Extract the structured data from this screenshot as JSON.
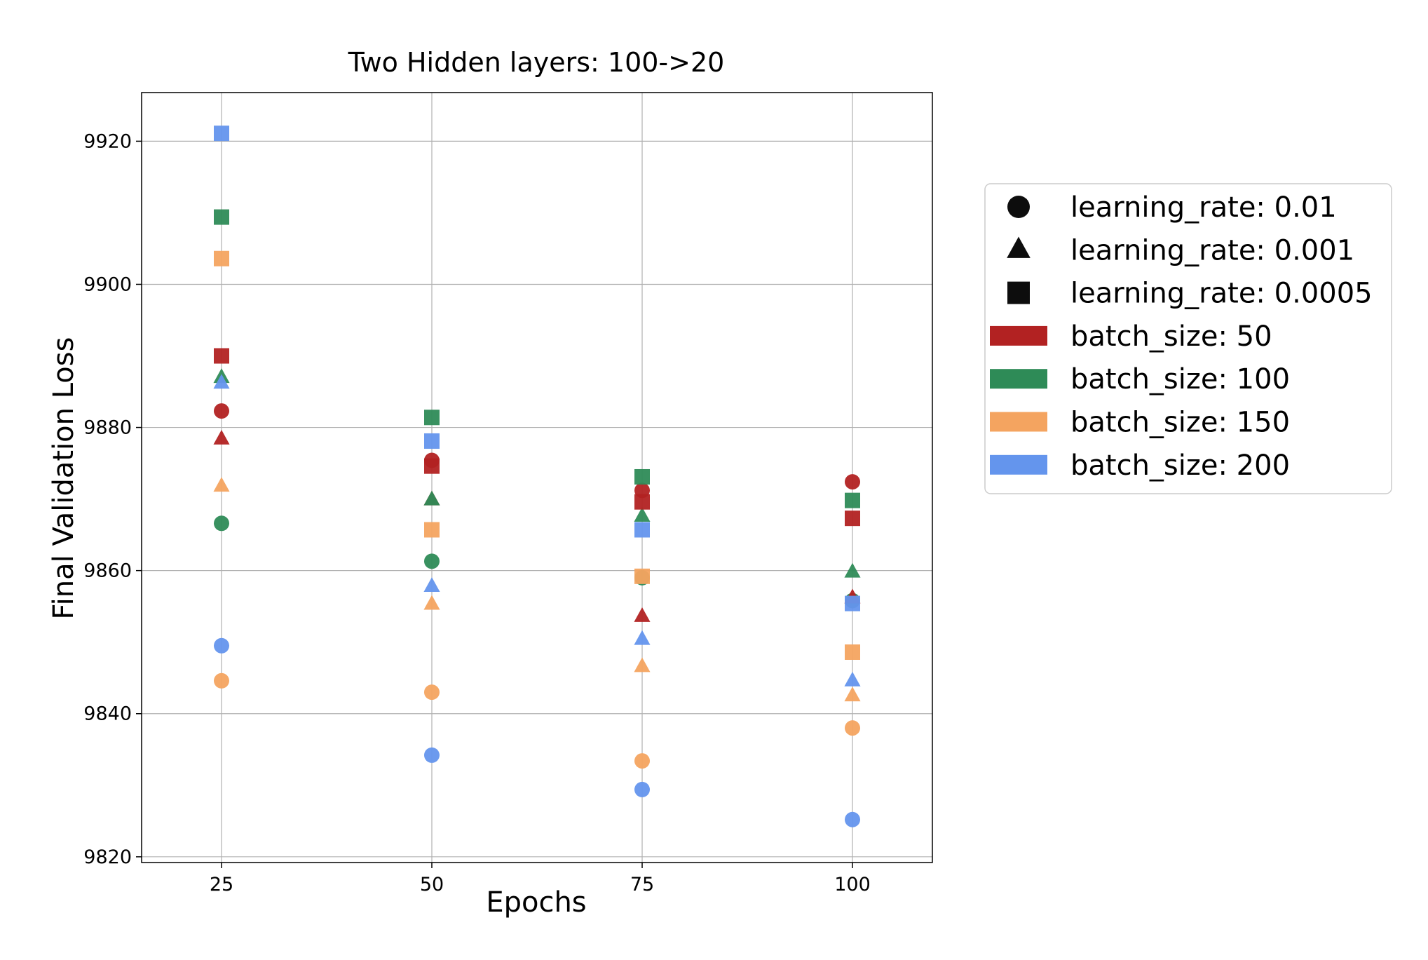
{
  "chart_data": {
    "type": "scatter",
    "title": "Two Hidden layers: 100->20",
    "xlabel": "Epochs",
    "ylabel": "Final Validation Loss",
    "xlim": [
      15.5,
      109.5
    ],
    "ylim": [
      9819.2,
      9926.8
    ],
    "xticks": [
      25,
      50,
      75,
      100
    ],
    "yticks": [
      9820,
      9840,
      9860,
      9880,
      9900,
      9920
    ],
    "grid": true,
    "legend_position": "outside-right",
    "colors": {
      "batch_size_50": "#b22222",
      "batch_size_100": "#2e8b57",
      "batch_size_150": "#f4a460",
      "batch_size_200": "#6495ed",
      "marker_legend": "#000000"
    },
    "legend": [
      {
        "label": "learning_rate: 0.01",
        "kind": "marker",
        "marker": "circle"
      },
      {
        "label": "learning_rate: 0.001",
        "kind": "marker",
        "marker": "triangle"
      },
      {
        "label": "learning_rate: 0.0005",
        "kind": "marker",
        "marker": "square"
      },
      {
        "label": "batch_size: 50",
        "kind": "patch",
        "color_key": "batch_size_50"
      },
      {
        "label": "batch_size: 100",
        "kind": "patch",
        "color_key": "batch_size_100"
      },
      {
        "label": "batch_size: 150",
        "kind": "patch",
        "color_key": "batch_size_150"
      },
      {
        "label": "batch_size: 200",
        "kind": "patch",
        "color_key": "batch_size_200"
      }
    ],
    "series": [
      {
        "batch_size": 50,
        "learning_rate": 0.01,
        "marker": "circle",
        "color_key": "batch_size_50",
        "x": [
          25,
          50,
          75,
          100
        ],
        "y": [
          9882.3,
          9875.4,
          9871.2,
          9872.4
        ]
      },
      {
        "batch_size": 100,
        "learning_rate": 0.01,
        "marker": "circle",
        "color_key": "batch_size_100",
        "x": [
          25,
          50,
          75,
          100
        ],
        "y": [
          9866.6,
          9861.3,
          9859.0,
          9855.8
        ]
      },
      {
        "batch_size": 150,
        "learning_rate": 0.01,
        "marker": "circle",
        "color_key": "batch_size_150",
        "x": [
          25,
          50,
          75,
          100
        ],
        "y": [
          9844.6,
          9843.0,
          9833.4,
          9838.0
        ]
      },
      {
        "batch_size": 200,
        "learning_rate": 0.01,
        "marker": "circle",
        "color_key": "batch_size_200",
        "x": [
          25,
          50,
          75,
          100
        ],
        "y": [
          9849.5,
          9834.2,
          9829.4,
          9825.2
        ]
      },
      {
        "batch_size": 50,
        "learning_rate": 0.001,
        "marker": "triangle",
        "color_key": "batch_size_50",
        "x": [
          25,
          50,
          75,
          100
        ],
        "y": [
          9878.4,
          9869.9,
          9853.6,
          9856.2
        ]
      },
      {
        "batch_size": 100,
        "learning_rate": 0.001,
        "marker": "triangle",
        "color_key": "batch_size_100",
        "x": [
          25,
          50,
          75,
          100
        ],
        "y": [
          9887.0,
          9869.9,
          9867.6,
          9859.8
        ]
      },
      {
        "batch_size": 150,
        "learning_rate": 0.001,
        "marker": "triangle",
        "color_key": "batch_size_150",
        "x": [
          25,
          50,
          75,
          100
        ],
        "y": [
          9871.8,
          9855.3,
          9846.6,
          9842.5
        ]
      },
      {
        "batch_size": 200,
        "learning_rate": 0.001,
        "marker": "triangle",
        "color_key": "batch_size_200",
        "x": [
          25,
          50,
          75,
          100
        ],
        "y": [
          9886.2,
          9857.8,
          9850.4,
          9844.6
        ]
      },
      {
        "batch_size": 50,
        "learning_rate": 0.0005,
        "marker": "square",
        "color_key": "batch_size_50",
        "x": [
          25,
          50,
          75,
          100
        ],
        "y": [
          9890.0,
          9874.6,
          9869.6,
          9867.3
        ]
      },
      {
        "batch_size": 100,
        "learning_rate": 0.0005,
        "marker": "square",
        "color_key": "batch_size_100",
        "x": [
          25,
          50,
          75,
          100
        ],
        "y": [
          9909.4,
          9881.4,
          9873.1,
          9869.8
        ]
      },
      {
        "batch_size": 150,
        "learning_rate": 0.0005,
        "marker": "square",
        "color_key": "batch_size_150",
        "x": [
          25,
          50,
          75,
          100
        ],
        "y": [
          9903.6,
          9865.7,
          9859.2,
          9848.6
        ]
      },
      {
        "batch_size": 200,
        "learning_rate": 0.0005,
        "marker": "square",
        "color_key": "batch_size_200",
        "x": [
          25,
          50,
          75,
          100
        ],
        "y": [
          9921.1,
          9878.1,
          9865.7,
          9855.4
        ]
      }
    ]
  }
}
